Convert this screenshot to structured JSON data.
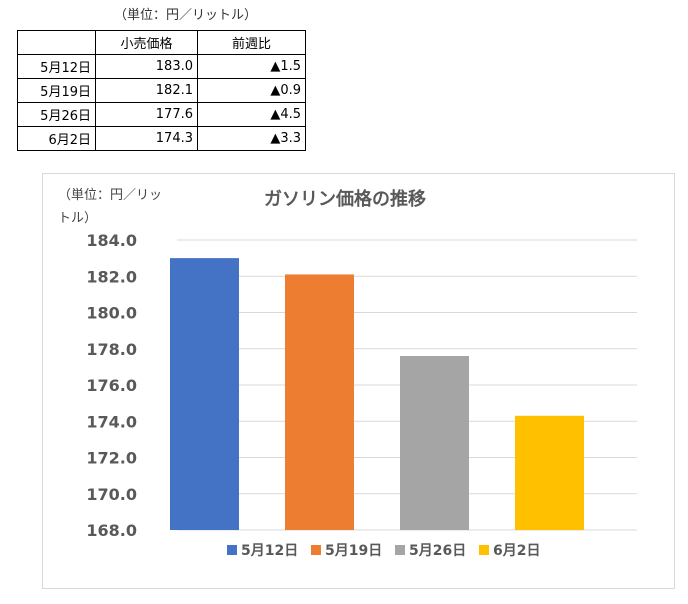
{
  "table": {
    "unit_note": "（単位：円／リットル）",
    "headers": [
      "",
      "小売価格",
      "前週比"
    ],
    "rows": [
      {
        "date": "5月12日",
        "price": "183.0",
        "change": "▲1.5"
      },
      {
        "date": "5月19日",
        "price": "182.1",
        "change": "▲0.9"
      },
      {
        "date": "5月26日",
        "price": "177.6",
        "change": "▲4.5"
      },
      {
        "date": "6月2日",
        "price": "174.3",
        "change": "▲3.3"
      }
    ]
  },
  "chart_data": {
    "type": "bar",
    "title": "ガソリン価格の推移",
    "unit_label": "（単位：円／リットル）",
    "categories": [
      "5月12日",
      "5月19日",
      "5月26日",
      "6月2日"
    ],
    "values": [
      183.0,
      182.1,
      177.6,
      174.3
    ],
    "colors": [
      "#4472C4",
      "#ED7D31",
      "#A5A5A5",
      "#FFC000"
    ],
    "ylim": [
      168.0,
      184.0
    ],
    "yticks": [
      "184.0",
      "182.0",
      "180.0",
      "178.0",
      "176.0",
      "174.0",
      "172.0",
      "170.0",
      "168.0"
    ],
    "grid": true,
    "legend_position": "bottom",
    "xlabel": "",
    "ylabel": ""
  }
}
